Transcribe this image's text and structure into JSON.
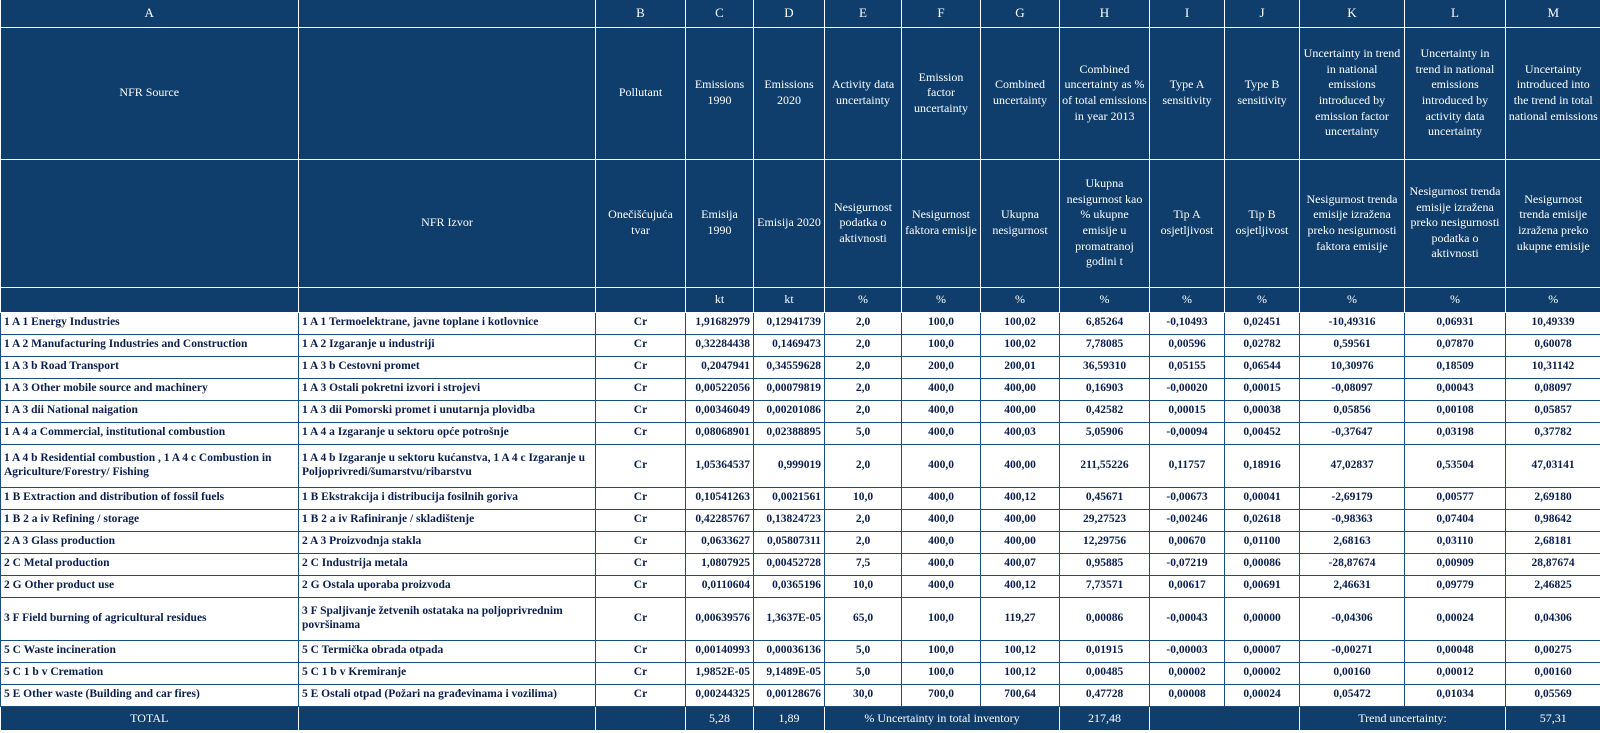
{
  "colors": {
    "header_bg": "#0f3e6c",
    "grid_border": "#1c4d7c",
    "data_text": "#0a1f4e",
    "header_text": "#ffffff"
  },
  "table": {
    "letters": [
      "A",
      "",
      "B",
      "C",
      "D",
      "E",
      "F",
      "G",
      "H",
      "I",
      "J",
      "K",
      "L",
      "M"
    ],
    "header_en": [
      "NFR Source",
      "",
      "Pollutant",
      "Emissions 1990",
      "Emissions 2020",
      "Activity data uncertainty",
      "Emission factor uncertainty",
      "Combined uncertainty",
      "Combined uncertainty as % of total emissions in year 2013",
      "Type A sensitivity",
      "Type B sensitivity",
      "Uncertainty in trend in national emissions introduced by emission factor uncertainty",
      "Uncertainty in trend in national emissions introduced by activity data uncertainty",
      "Uncertainty introduced into the trend in total national emissions"
    ],
    "header_hr": [
      "",
      "NFR Izvor",
      "Onečišćujuća tvar",
      "Emisija 1990",
      "Emisija 2020",
      "Nesigurnost podatka o aktivnosti",
      "Nesigurnost faktora emisije",
      "Ukupna nesigurnost",
      "Ukupna nesigurnost kao % ukupne emisije u promatranoj godini t",
      "Tip A osjetljivost",
      "Tip B osjetljivost",
      "Nesigurnost trenda emisije izražena preko nesigurnosti faktora emisije",
      "Nesigurnost trenda emisije izražena preko nesigurnosti podatka o aktivnosti",
      "Nesigurnost trenda emisije izražena preko ukupne emisije"
    ],
    "units": [
      "",
      "",
      "",
      "kt",
      "kt",
      "%",
      "%",
      "%",
      "%",
      "%",
      "%",
      "%",
      "%",
      "%"
    ],
    "rows": [
      {
        "en": "1 A 1  Energy Industries",
        "hr": "1 A 1 Termoelektrane, javne toplane i kotlovnice",
        "p": "Cr",
        "c": "1,91682979",
        "d": "0,12941739",
        "e": "2,0",
        "f": "100,0",
        "g": "100,02",
        "h": "6,85264",
        "i": "-0,10493",
        "j": "0,02451",
        "k": "-10,49316",
        "l": "0,06931",
        "m": "10,49339"
      },
      {
        "en": "1 A 2  Manufacturing Industries and Construction",
        "hr": "1 A 2  Izgaranje u industriji",
        "p": "Cr",
        "c": "0,32284438",
        "d": "0,1469473",
        "e": "2,0",
        "f": "100,0",
        "g": "100,02",
        "h": "7,78085",
        "i": "0,00596",
        "j": "0,02782",
        "k": "0,59561",
        "l": "0,07870",
        "m": "0,60078"
      },
      {
        "en": "1 A 3 b  Road Transport",
        "hr": "1 A 3 b  Cestovni promet",
        "p": "Cr",
        "c": "0,2047941",
        "d": "0,34559628",
        "e": "2,0",
        "f": "200,0",
        "g": "200,01",
        "h": "36,59310",
        "i": "0,05155",
        "j": "0,06544",
        "k": "10,30976",
        "l": "0,18509",
        "m": "10,31142"
      },
      {
        "en": "1 A 3  Other mobile source and machinery",
        "hr": "1 A 3  Ostali pokretni izvori i strojevi",
        "p": "Cr",
        "c": "0,00522056",
        "d": "0,00079819",
        "e": "2,0",
        "f": "400,0",
        "g": "400,00",
        "h": "0,16903",
        "i": "-0,00020",
        "j": "0,00015",
        "k": "-0,08097",
        "l": "0,00043",
        "m": "0,08097"
      },
      {
        "en": "1 A 3 dii National naigation",
        "hr": "1 A 3 dii Pomorski promet i unutarnja plovidba",
        "p": "Cr",
        "c": "0,00346049",
        "d": "0,00201086",
        "e": "2,0",
        "f": "400,0",
        "g": "400,00",
        "h": "0,42582",
        "i": "0,00015",
        "j": "0,00038",
        "k": "0,05856",
        "l": "0,00108",
        "m": "0,05857"
      },
      {
        "en": "1 A 4 a Commercial, institutional  combustion",
        "hr": "1 A 4 a Izgaranje u sektoru opće potrošnje",
        "p": "Cr",
        "c": "0,08068901",
        "d": "0,02388895",
        "e": "5,0",
        "f": "400,0",
        "g": "400,03",
        "h": "5,05906",
        "i": "-0,00094",
        "j": "0,00452",
        "k": "-0,37647",
        "l": "0,03198",
        "m": "0,37782"
      },
      {
        "en": "1 A 4 b Residential combustion , 1 A 4 c  Combustion in Agriculture/Forestry/ Fishing",
        "hr": "1 A 4 b Izgaranje u sektoru kućanstva, 1 A 4 c Izgaranje u Poljoprivredi/šumarstvu/ribarstvu",
        "p": "Cr",
        "c": "1,05364537",
        "d": "0,999019",
        "e": "2,0",
        "f": "400,0",
        "g": "400,00",
        "h": "211,55226",
        "i": "0,11757",
        "j": "0,18916",
        "k": "47,02837",
        "l": "0,53504",
        "m": "47,03141",
        "tall": true
      },
      {
        "en": "1 B  Extraction and distribution of fossil fuels",
        "hr": "1 B  Ekstrakcija i distribucija fosilnih goriva",
        "p": "Cr",
        "c": "0,10541263",
        "d": "0,0021561",
        "e": "10,0",
        "f": "400,0",
        "g": "400,12",
        "h": "0,45671",
        "i": "-0,00673",
        "j": "0,00041",
        "k": "-2,69179",
        "l": "0,00577",
        "m": "2,69180"
      },
      {
        "en": "1 B 2 a iv Refining / storage",
        "hr": "1 B 2 a iv Rafiniranje / skladištenje",
        "p": "Cr",
        "c": "0,42285767",
        "d": "0,13824723",
        "e": "2,0",
        "f": "400,0",
        "g": "400,00",
        "h": "29,27523",
        "i": "-0,00246",
        "j": "0,02618",
        "k": "-0,98363",
        "l": "0,07404",
        "m": "0,98642"
      },
      {
        "en": "2 A 3 Glass production",
        "hr": "2 A 3 Proizvodnja stakla",
        "p": "Cr",
        "c": "0,0633627",
        "d": "0,05807311",
        "e": "2,0",
        "f": "400,0",
        "g": "400,00",
        "h": "12,29756",
        "i": "0,00670",
        "j": "0,01100",
        "k": "2,68163",
        "l": "0,03110",
        "m": "2,68181"
      },
      {
        "en": "2 C  Metal production",
        "hr": "2 C  Industrija metala",
        "p": "Cr",
        "c": "1,0807925",
        "d": "0,00452728",
        "e": "7,5",
        "f": "400,0",
        "g": "400,07",
        "h": "0,95885",
        "i": "-0,07219",
        "j": "0,00086",
        "k": "-28,87674",
        "l": "0,00909",
        "m": "28,87674"
      },
      {
        "en": "2 G Other product use",
        "hr": "2 G Ostala uporaba proizvoda",
        "p": "Cr",
        "c": "0,0110604",
        "d": "0,0365196",
        "e": "10,0",
        "f": "400,0",
        "g": "400,12",
        "h": "7,73571",
        "i": "0,00617",
        "j": "0,00691",
        "k": "2,46631",
        "l": "0,09779",
        "m": "2,46825"
      },
      {
        "en": "3 F Field burning of agricultural residues",
        "hr": "3 F Spaljivanje žetvenih ostataka na poljoprivrednim površinama",
        "p": "Cr",
        "c": "0,00639576",
        "d": "1,3637E-05",
        "e": "65,0",
        "f": "100,0",
        "g": "119,27",
        "h": "0,00086",
        "i": "-0,00043",
        "j": "0,00000",
        "k": "-0,04306",
        "l": "0,00024",
        "m": "0,04306",
        "tall": true
      },
      {
        "en": "5 C Waste incineration",
        "hr": "5 C  Termička obrada otpada",
        "p": "Cr",
        "c": "0,00140993",
        "d": "0,00036136",
        "e": "5,0",
        "f": "100,0",
        "g": "100,12",
        "h": "0,01915",
        "i": "-0,00003",
        "j": "0,00007",
        "k": "-0,00271",
        "l": "0,00048",
        "m": "0,00275"
      },
      {
        "en": "5 C 1 b v  Cremation",
        "hr": "5 C 1 b v  Kremiranje",
        "p": "Cr",
        "c": "1,9852E-05",
        "d": "9,1489E-05",
        "e": "5,0",
        "f": "100,0",
        "g": "100,12",
        "h": "0,00485",
        "i": "0,00002",
        "j": "0,00002",
        "k": "0,00160",
        "l": "0,00012",
        "m": "0,00160"
      },
      {
        "en": "5 E Other waste (Building and car fires)",
        "hr": "5 E Ostali otpad (Požari na građevinama i vozilima)",
        "p": "Cr",
        "c": "0,00244325",
        "d": "0,00128676",
        "e": "30,0",
        "f": "700,0",
        "g": "700,64",
        "h": "0,47728",
        "i": "0,00008",
        "j": "0,00024",
        "k": "0,05472",
        "l": "0,01034",
        "m": "0,05569"
      }
    ],
    "total": {
      "label": "TOTAL",
      "e1990": "5,28",
      "e2020": "1,89",
      "inventory_label": "% Uncertainty in total inventory",
      "inventory_value": "217,48",
      "trend_label": "Trend uncertainty:",
      "trend_value": "57,31"
    }
  }
}
